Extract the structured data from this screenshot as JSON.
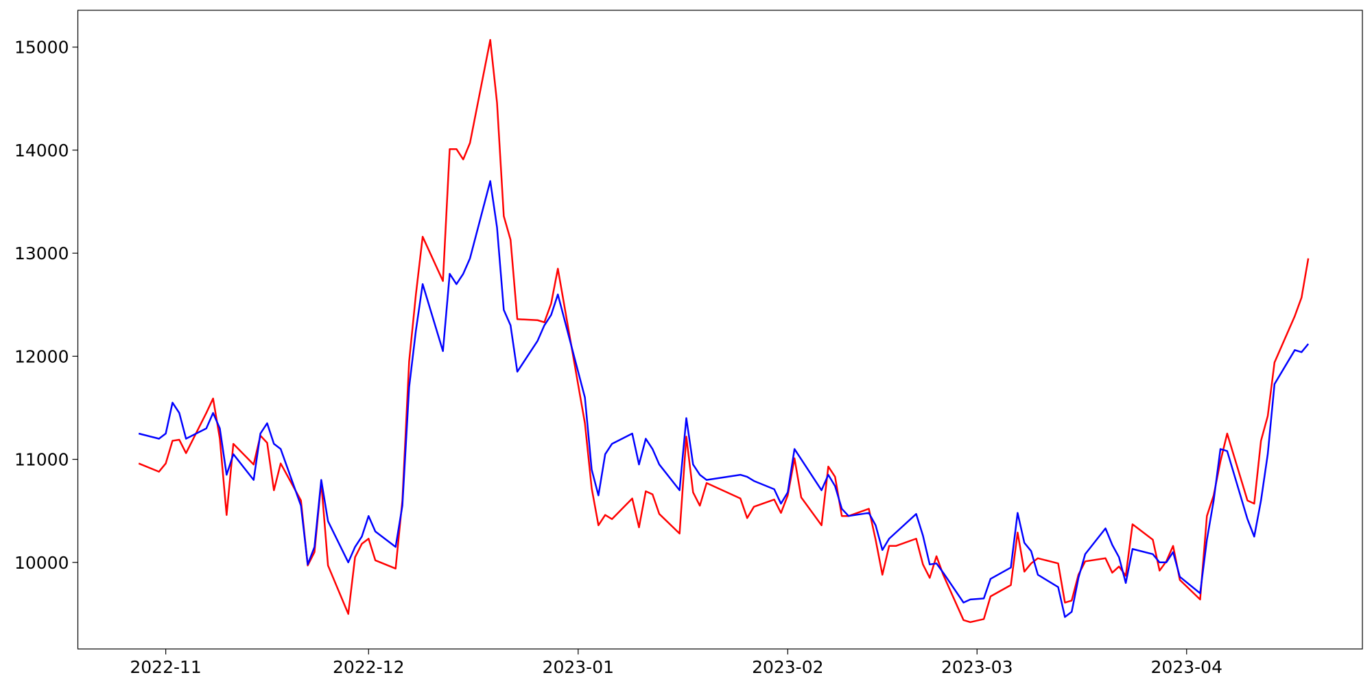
{
  "chart_data": {
    "type": "line",
    "x": [
      "2022-10-28",
      "2022-10-31",
      "2022-11-01",
      "2022-11-02",
      "2022-11-03",
      "2022-11-04",
      "2022-11-07",
      "2022-11-08",
      "2022-11-09",
      "2022-11-10",
      "2022-11-11",
      "2022-11-14",
      "2022-11-15",
      "2022-11-16",
      "2022-11-17",
      "2022-11-18",
      "2022-11-21",
      "2022-11-22",
      "2022-11-23",
      "2022-11-24",
      "2022-11-25",
      "2022-11-28",
      "2022-11-29",
      "2022-11-30",
      "2022-12-01",
      "2022-12-02",
      "2022-12-05",
      "2022-12-06",
      "2022-12-07",
      "2022-12-08",
      "2022-12-09",
      "2022-12-12",
      "2022-12-13",
      "2022-12-14",
      "2022-12-15",
      "2022-12-16",
      "2022-12-19",
      "2022-12-20",
      "2022-12-21",
      "2022-12-22",
      "2022-12-23",
      "2022-12-26",
      "2022-12-27",
      "2022-12-28",
      "2022-12-29",
      "2023-01-02",
      "2023-01-03",
      "2023-01-04",
      "2023-01-05",
      "2023-01-06",
      "2023-01-09",
      "2023-01-10",
      "2023-01-11",
      "2023-01-12",
      "2023-01-13",
      "2023-01-16",
      "2023-01-17",
      "2023-01-18",
      "2023-01-19",
      "2023-01-20",
      "2023-01-25",
      "2023-01-26",
      "2023-01-27",
      "2023-01-30",
      "2023-01-31",
      "2023-02-01",
      "2023-02-02",
      "2023-02-03",
      "2023-02-06",
      "2023-02-07",
      "2023-02-08",
      "2023-02-09",
      "2023-02-10",
      "2023-02-13",
      "2023-02-14",
      "2023-02-15",
      "2023-02-16",
      "2023-02-17",
      "2023-02-20",
      "2023-02-21",
      "2023-02-22",
      "2023-02-23",
      "2023-02-24",
      "2023-02-27",
      "2023-02-28",
      "2023-03-02",
      "2023-03-03",
      "2023-03-06",
      "2023-03-07",
      "2023-03-08",
      "2023-03-09",
      "2023-03-10",
      "2023-03-13",
      "2023-03-14",
      "2023-03-15",
      "2023-03-16",
      "2023-03-17",
      "2023-03-20",
      "2023-03-21",
      "2023-03-22",
      "2023-03-23",
      "2023-03-24",
      "2023-03-27",
      "2023-03-28",
      "2023-03-29",
      "2023-03-30",
      "2023-03-31",
      "2023-04-03",
      "2023-04-04",
      "2023-04-05",
      "2023-04-06",
      "2023-04-07",
      "2023-04-10",
      "2023-04-11",
      "2023-04-12",
      "2023-04-13",
      "2023-04-14",
      "2023-04-17",
      "2023-04-18",
      "2023-04-19"
    ],
    "series": [
      {
        "color": "#ff0000",
        "values": [
          10960,
          10880,
          10960,
          11180,
          11190,
          11060,
          11450,
          11590,
          11200,
          10460,
          11150,
          10950,
          11230,
          11160,
          10700,
          10960,
          10600,
          9970,
          10100,
          10780,
          9970,
          9500,
          10050,
          10180,
          10230,
          10020,
          9940,
          10600,
          11950,
          12600,
          13160,
          12730,
          14010,
          14010,
          13910,
          14070,
          15070,
          14460,
          13360,
          13130,
          12360,
          12350,
          12330,
          12510,
          12850,
          11350,
          10720,
          10360,
          10460,
          10420,
          10620,
          10340,
          10690,
          10660,
          10470,
          10280,
          11220,
          10680,
          10550,
          10770,
          10620,
          10430,
          10540,
          10610,
          10480,
          10650,
          11010,
          10630,
          10360,
          10930,
          10830,
          10450,
          10450,
          10520,
          10220,
          9880,
          10160,
          10160,
          10230,
          9980,
          9850,
          10060,
          9880,
          9440,
          9420,
          9450,
          9670,
          9780,
          10290,
          9910,
          9990,
          10040,
          9990,
          9610,
          9630,
          9880,
          10010,
          10040,
          9900,
          9960,
          9870,
          10370,
          10220,
          9920,
          10010,
          10160,
          9830,
          9640,
          10450,
          10650,
          10980,
          11250,
          10600,
          10570,
          11180,
          11420,
          11940,
          12390,
          12570,
          12950
        ]
      },
      {
        "color": "#0000ff",
        "values": [
          11250,
          11200,
          11250,
          11550,
          11450,
          11200,
          11300,
          11450,
          11300,
          10850,
          11050,
          10800,
          11250,
          11350,
          11150,
          11100,
          10550,
          9980,
          10150,
          10800,
          10400,
          10000,
          10150,
          10250,
          10450,
          10300,
          10150,
          10550,
          11700,
          12250,
          12700,
          12050,
          12800,
          12700,
          12800,
          12950,
          13700,
          13250,
          12450,
          12300,
          11850,
          12150,
          12300,
          12400,
          12600,
          11600,
          10900,
          10650,
          11050,
          11150,
          11250,
          10950,
          11200,
          11100,
          10950,
          10700,
          11400,
          10950,
          10850,
          10800,
          10850,
          10830,
          10790,
          10710,
          10570,
          10680,
          11100,
          11000,
          10700,
          10850,
          10740,
          10520,
          10450,
          10480,
          10360,
          10120,
          10230,
          10290,
          10470,
          10260,
          9980,
          9990,
          9900,
          9610,
          9640,
          9650,
          9840,
          9950,
          10480,
          10190,
          10110,
          9880,
          9760,
          9470,
          9520,
          9850,
          10080,
          10330,
          10170,
          10050,
          9800,
          10130,
          10080,
          10000,
          10000,
          10100,
          9860,
          9700,
          10220,
          10600,
          11100,
          11080,
          10420,
          10250,
          10600,
          11050,
          11730,
          12060,
          12040,
          12120
        ]
      }
    ],
    "xlim": [
      "2022-10-19",
      "2023-04-27"
    ],
    "xticks": [
      "2022-11",
      "2022-12",
      "2023-01",
      "2023-02",
      "2023-03",
      "2023-04"
    ],
    "ylim": [
      9160,
      15357
    ],
    "yticks": [
      10000,
      11000,
      12000,
      13000,
      14000,
      15000
    ],
    "grid": false
  }
}
